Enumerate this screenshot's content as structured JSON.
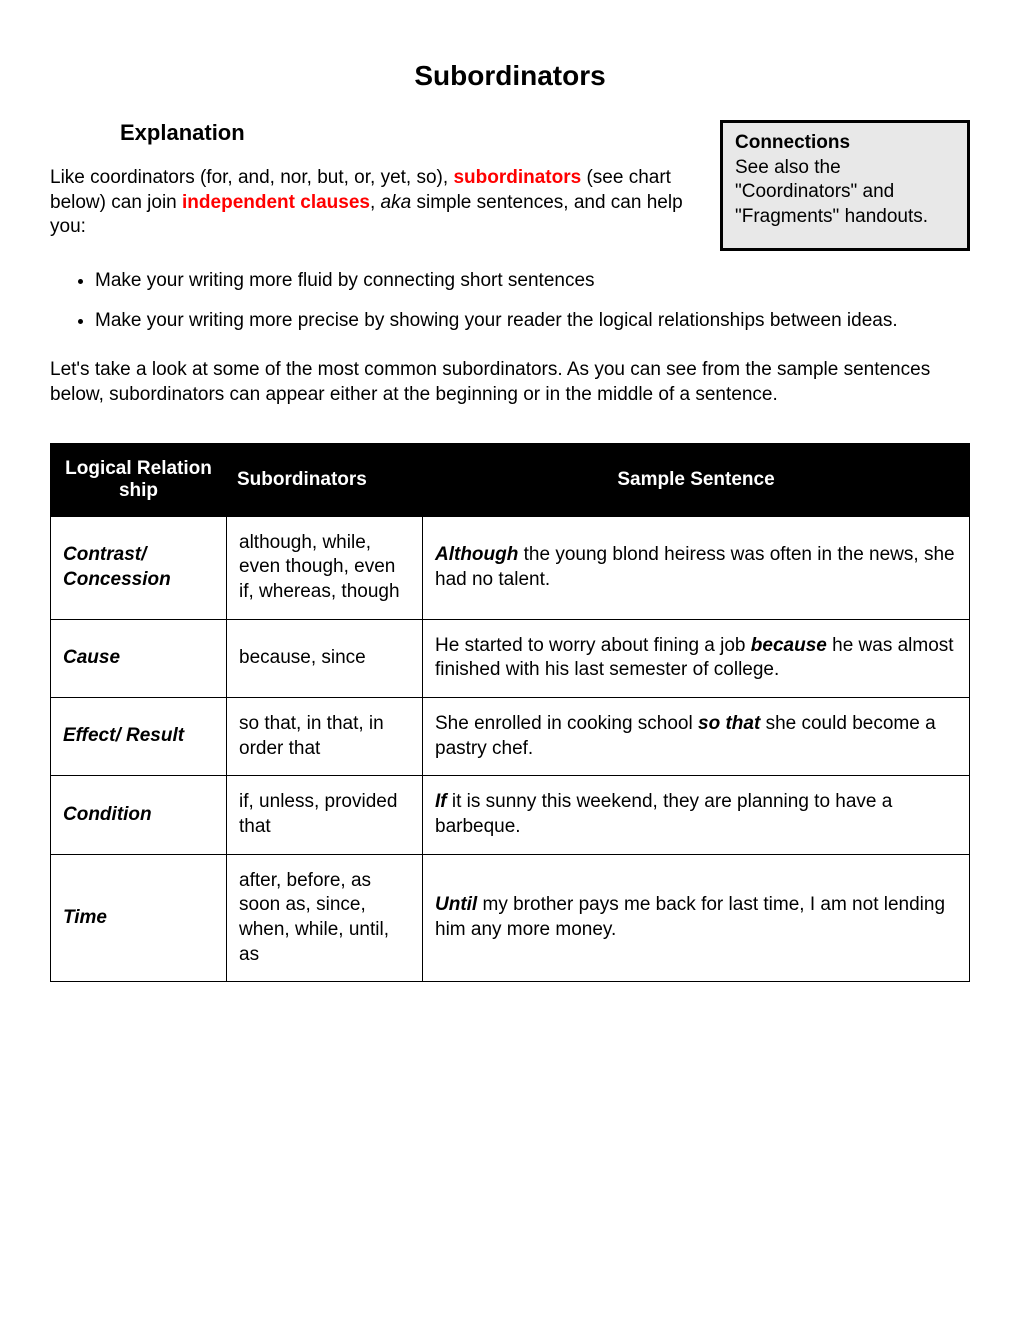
{
  "title": "Subordinators",
  "explanation_heading": "Explanation",
  "intro_p1_a": "Like coordinators (for, and, nor, but, or, yet, so), ",
  "intro_subordinators": "subordinators",
  "intro_p1_b": " (see chart below) can join ",
  "intro_independent": "independent clauses",
  "intro_p1_c": ", ",
  "intro_aka": "aka",
  "intro_p1_d": " simple sentences, and can help you:",
  "connections": {
    "title": "Connections",
    "body": "See also the \"Coordinators\" and \"Fragments\" handouts."
  },
  "bullets": [
    "Make your writing more fluid by connecting short sentences",
    "Make your writing more precise by showing your reader the logical relationships between ideas."
  ],
  "lets_take": "Let's take a look at some of the most common subordinators. As you can see from the sample sentences below, subordinators can appear either at the beginning or in the middle of a sentence.",
  "table": {
    "headers": {
      "relation": "Logical Relation ship",
      "subordinators": "Subordinators",
      "sample": "Sample Sentence"
    },
    "rows": [
      {
        "relation": "Contrast/ Concession",
        "subs": "although, while, even though, even if, whereas, though",
        "sample_pre": "",
        "sample_bold": "Although",
        "sample_post": " the young blond heiress was often in the news, she had no talent."
      },
      {
        "relation": "Cause",
        "subs": "because, since",
        "sample_pre": "He started to worry about fining a job ",
        "sample_bold": "because",
        "sample_post": " he was almost finished with his last semester of college."
      },
      {
        "relation": "Effect/ Result",
        "subs": "so that, in that, in order that",
        "sample_pre": "She enrolled in cooking school ",
        "sample_bold": "so that",
        "sample_post": " she could become a pastry chef."
      },
      {
        "relation": "Condition",
        "subs": "if, unless, provided that",
        "sample_pre": "",
        "sample_bold": "If",
        "sample_post": " it is sunny this weekend, they are planning to have a barbeque."
      },
      {
        "relation": "Time",
        "subs": "after, before, as soon as, since, when, while, until, as",
        "sample_pre": "",
        "sample_bold": "Until",
        "sample_post": " my brother pays me back for last time, I am not lending him any more money."
      }
    ]
  }
}
